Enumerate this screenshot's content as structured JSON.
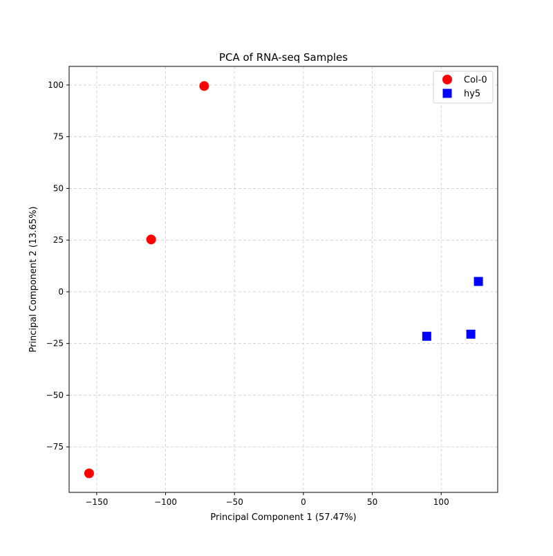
{
  "chart_data": {
    "type": "scatter",
    "title": "PCA of RNA-seq Samples",
    "xlabel": "Principal Component 1 (57.47%)",
    "ylabel": "Principal Component 2 (13.65%)",
    "xlim": [
      -170,
      141
    ],
    "ylim": [
      -97,
      109
    ],
    "xticks": [
      -150,
      -100,
      -50,
      0,
      50,
      100
    ],
    "yticks": [
      -75,
      -50,
      -25,
      0,
      25,
      50,
      75,
      100
    ],
    "grid": true,
    "legend_position": "top-right",
    "series": [
      {
        "name": "Col-0",
        "marker": "circle",
        "color": "#ff0000",
        "points": [
          {
            "x": -72,
            "y": 99.5
          },
          {
            "x": -110.5,
            "y": 25.3
          },
          {
            "x": -155.5,
            "y": -87.8
          }
        ]
      },
      {
        "name": "hy5",
        "marker": "square",
        "color": "#0000ff",
        "points": [
          {
            "x": 127,
            "y": 5
          },
          {
            "x": 89.5,
            "y": -21.5
          },
          {
            "x": 121.5,
            "y": -20.5
          }
        ]
      }
    ]
  }
}
